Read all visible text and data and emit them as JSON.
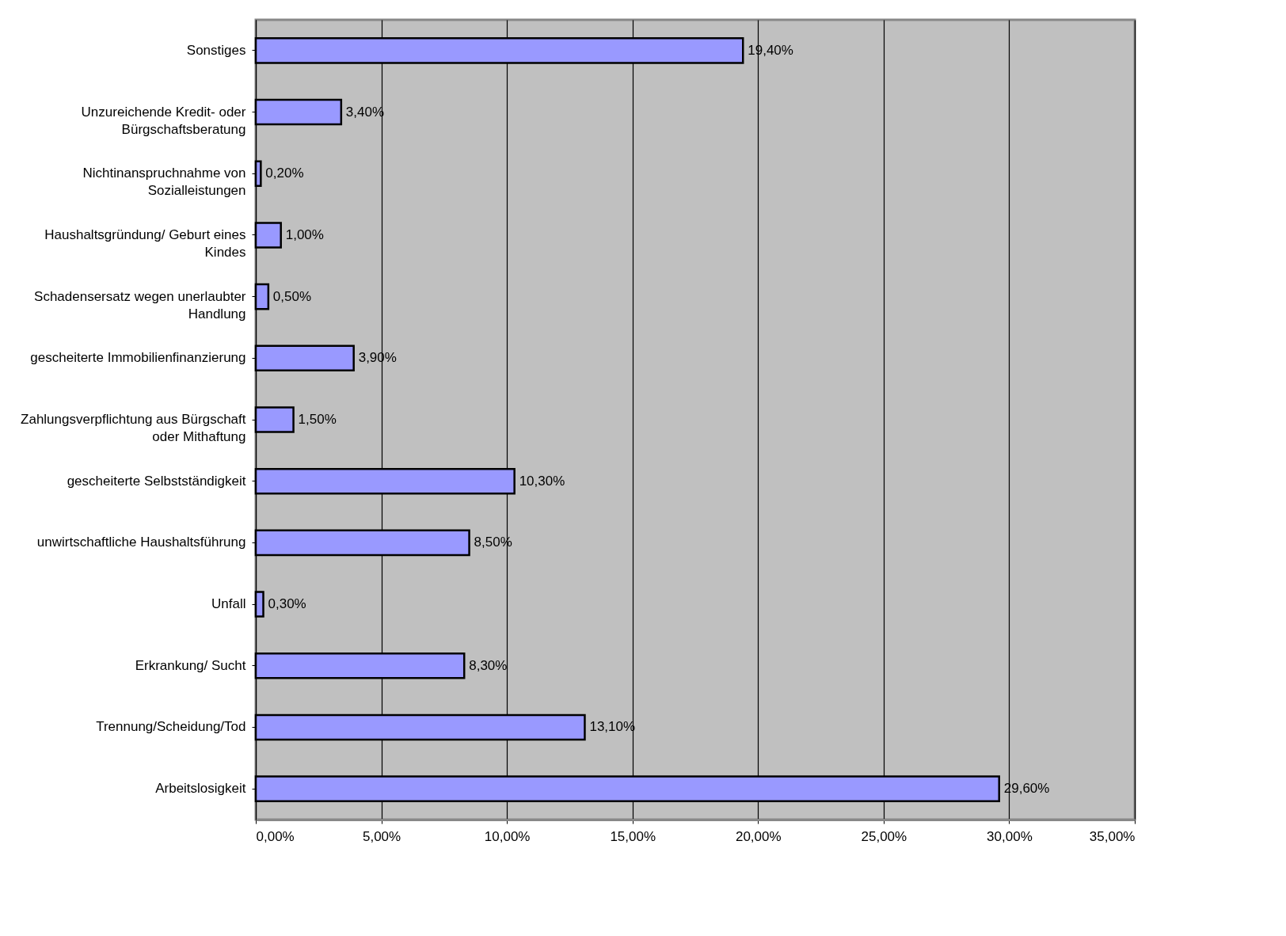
{
  "chart_data": {
    "type": "bar",
    "orientation": "horizontal",
    "categories": [
      "Sonstiges",
      "Unzureichende Kredit- oder Bürgschaftsberatung",
      "Nichtinanspruchnahme von Sozialleistungen",
      "Haushaltsgründung/ Geburt eines Kindes",
      "Schadensersatz wegen unerlaubter Handlung",
      "gescheiterte Immobilienfinanzierung",
      "Zahlungsverpflichtung aus Bürgschaft oder Mithaftung",
      "gescheiterte Selbstständigkeit",
      "unwirtschaftliche Haushaltsführung",
      "Unfall",
      "Erkrankung/ Sucht",
      "Trennung/Scheidung/Tod",
      "Arbeitslosigkeit"
    ],
    "values": [
      19.4,
      3.4,
      0.2,
      1.0,
      0.5,
      3.9,
      1.5,
      10.3,
      8.5,
      0.3,
      8.3,
      13.1,
      29.6
    ],
    "value_labels": [
      "19,40%",
      "3,40%",
      "0,20%",
      "1,00%",
      "0,50%",
      "3,90%",
      "1,50%",
      "10,30%",
      "8,50%",
      "0,30%",
      "8,30%",
      "13,10%",
      "29,60%"
    ],
    "color": "#9999ff",
    "xlim": [
      0,
      35
    ],
    "xticks": [
      {
        "value": 0,
        "label": "0,00%"
      },
      {
        "value": 5,
        "label": "5,00%"
      },
      {
        "value": 10,
        "label": "10,00%"
      },
      {
        "value": 15,
        "label": "15,00%"
      },
      {
        "value": 20,
        "label": "20,00%"
      },
      {
        "value": 25,
        "label": "25,00%"
      },
      {
        "value": 30,
        "label": "30,00%"
      },
      {
        "value": 35,
        "label": "35,00%"
      }
    ],
    "grid": "x"
  }
}
